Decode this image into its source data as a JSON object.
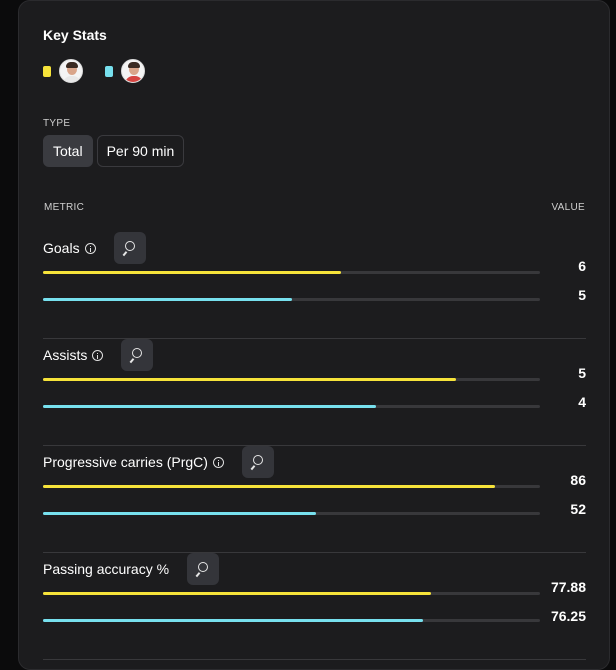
{
  "title": "Key Stats",
  "colors": {
    "playerA": "#f6e33a",
    "playerB": "#77e0ee"
  },
  "legend": [
    {
      "color": "#f6e33a",
      "avatar_icon": "player-avatar-icon"
    },
    {
      "color": "#77e0ee",
      "avatar_icon": "player-avatar-icon"
    }
  ],
  "type": {
    "label": "TYPE",
    "options": [
      "Total",
      "Per 90 min"
    ],
    "selected": "Total"
  },
  "columns": {
    "metric": "METRIC",
    "value": "VALUE"
  },
  "metrics": [
    {
      "name": "Goals",
      "has_info": true,
      "a": {
        "value": "6",
        "fill": 0.6
      },
      "b": {
        "value": "5",
        "fill": 0.5
      }
    },
    {
      "name": "Assists",
      "has_info": true,
      "a": {
        "value": "5",
        "fill": 0.83
      },
      "b": {
        "value": "4",
        "fill": 0.67
      }
    },
    {
      "name": "Progressive carries (PrgC)",
      "has_info": true,
      "a": {
        "value": "86",
        "fill": 0.91
      },
      "b": {
        "value": "52",
        "fill": 0.55
      }
    },
    {
      "name": "Passing accuracy %",
      "has_info": false,
      "a": {
        "value": "77.88",
        "fill": 0.78
      },
      "b": {
        "value": "76.25",
        "fill": 0.765
      }
    }
  ]
}
